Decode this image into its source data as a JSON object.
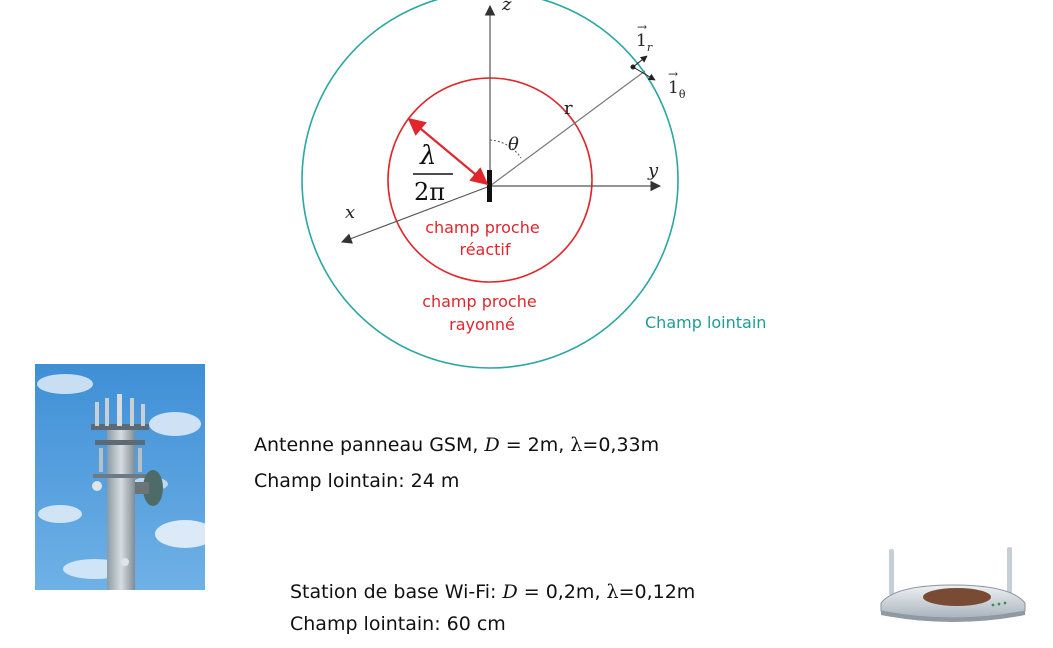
{
  "diagram": {
    "axis_z": "z",
    "axis_y": "y",
    "axis_x": "x",
    "radius_label": "r",
    "theta_label": "θ",
    "unit_r": "1",
    "unit_r_sub": "r",
    "unit_theta": "1",
    "unit_theta_sub": "θ",
    "lambda_num": "λ",
    "lambda_den": "2π",
    "near_reactive": [
      "champ proche",
      "réactif"
    ],
    "near_radiating": [
      "champ proche",
      "rayonné"
    ],
    "far_field": "Champ lointain",
    "colors": {
      "far_circle": "#2aa7a3",
      "near_circle": "#e0262c",
      "axes": "#555555",
      "near_text": "#e0262c",
      "far_text": "#1f9c98"
    }
  },
  "gsm": {
    "pre": "Antenne panneau GSM, ",
    "d_symbol": "D",
    "d_value": " = 2m, ",
    "lambda_symbol": "λ",
    "lambda_value": "=0,33m",
    "far_label": "Champ lointain: 24 m"
  },
  "wifi": {
    "pre": "Station de base Wi-Fi: ",
    "d_symbol": "D",
    "d_value": " = 0,2m, ",
    "lambda_symbol": "λ",
    "lambda_value": "=0,12m",
    "far_label": "Champ lointain: 60 cm"
  },
  "images": {
    "tower": "gsm-tower-photo",
    "router": "wifi-router-photo"
  }
}
